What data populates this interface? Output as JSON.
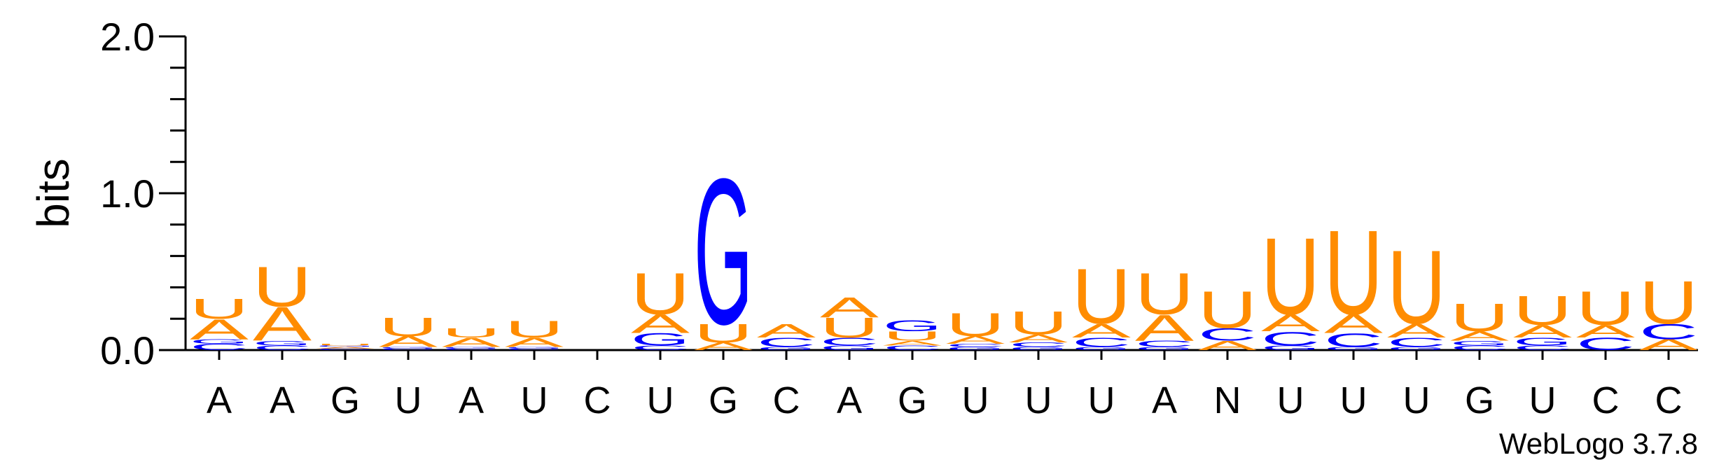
{
  "chart_data": {
    "type": "sequence-logo",
    "ylabel": "bits",
    "ylim": [
      0,
      2.0
    ],
    "yticks": [
      "0.0",
      "1.0",
      "2.0"
    ],
    "x_labels": [
      "A",
      "A",
      "G",
      "U",
      "A",
      "U",
      "C",
      "U",
      "G",
      "C",
      "A",
      "G",
      "U",
      "U",
      "U",
      "A",
      "N",
      "U",
      "U",
      "U",
      "G",
      "U",
      "C",
      "C"
    ],
    "colors": {
      "A": "#ff8c00",
      "U": "#ff8c00",
      "G": "#0000ff",
      "C": "#0000ff"
    },
    "columns": [
      [
        [
          "C",
          0.04
        ],
        [
          "G",
          0.03
        ],
        [
          "A",
          0.13
        ],
        [
          "U",
          0.13
        ]
      ],
      [
        [
          "C",
          0.03
        ],
        [
          "G",
          0.03
        ],
        [
          "A",
          0.22
        ],
        [
          "U",
          0.26
        ]
      ],
      [
        [
          "C",
          0.01
        ],
        [
          "A",
          0.01
        ],
        [
          "G",
          0.01
        ],
        [
          "U",
          0.01
        ]
      ],
      [
        [
          "C",
          0.01
        ],
        [
          "G",
          0.01
        ],
        [
          "A",
          0.07
        ],
        [
          "U",
          0.12
        ]
      ],
      [
        [
          "C",
          0.01
        ],
        [
          "G",
          0.01
        ],
        [
          "A",
          0.06
        ],
        [
          "U",
          0.06
        ]
      ],
      [
        [
          "C",
          0.01
        ],
        [
          "G",
          0.01
        ],
        [
          "A",
          0.06
        ],
        [
          "U",
          0.11
        ]
      ],
      [],
      [
        [
          "C",
          0.03
        ],
        [
          "G",
          0.08
        ],
        [
          "A",
          0.12
        ],
        [
          "U",
          0.27
        ]
      ],
      [
        [
          "A",
          0.05
        ],
        [
          "U",
          0.12
        ],
        [
          "G",
          0.95
        ]
      ],
      [
        [
          "G",
          0.02
        ],
        [
          "C",
          0.06
        ],
        [
          "A",
          0.09
        ]
      ],
      [
        [
          "G",
          0.03
        ],
        [
          "C",
          0.05
        ],
        [
          "U",
          0.13
        ],
        [
          "A",
          0.13
        ]
      ],
      [
        [
          "C",
          0.03
        ],
        [
          "A",
          0.03
        ],
        [
          "U",
          0.06
        ],
        [
          "G",
          0.07
        ]
      ],
      [
        [
          "G",
          0.02
        ],
        [
          "C",
          0.02
        ],
        [
          "A",
          0.05
        ],
        [
          "U",
          0.15
        ]
      ],
      [
        [
          "G",
          0.02
        ],
        [
          "C",
          0.03
        ],
        [
          "A",
          0.05
        ],
        [
          "U",
          0.15
        ]
      ],
      [
        [
          "G",
          0.02
        ],
        [
          "C",
          0.06
        ],
        [
          "A",
          0.09
        ],
        [
          "U",
          0.36
        ]
      ],
      [
        [
          "G",
          0.02
        ],
        [
          "C",
          0.04
        ],
        [
          "A",
          0.17
        ],
        [
          "U",
          0.27
        ]
      ],
      [
        [
          "A",
          0.06
        ],
        [
          "C",
          0.08
        ],
        [
          "U",
          0.24
        ]
      ],
      [
        [
          "G",
          0.03
        ],
        [
          "C",
          0.09
        ],
        [
          "A",
          0.11
        ],
        [
          "U",
          0.5
        ]
      ],
      [
        [
          "G",
          0.02
        ],
        [
          "C",
          0.09
        ],
        [
          "A",
          0.12
        ],
        [
          "U",
          0.55
        ]
      ],
      [
        [
          "G",
          0.02
        ],
        [
          "C",
          0.06
        ],
        [
          "A",
          0.09
        ],
        [
          "U",
          0.48
        ]
      ],
      [
        [
          "C",
          0.03
        ],
        [
          "G",
          0.03
        ],
        [
          "A",
          0.06
        ],
        [
          "U",
          0.18
        ]
      ],
      [
        [
          "C",
          0.03
        ],
        [
          "G",
          0.05
        ],
        [
          "A",
          0.08
        ],
        [
          "U",
          0.19
        ]
      ],
      [
        [
          "C",
          0.08
        ],
        [
          "A",
          0.08
        ],
        [
          "U",
          0.22
        ]
      ],
      [
        [
          "A",
          0.07
        ],
        [
          "C",
          0.1
        ],
        [
          "U",
          0.28
        ]
      ]
    ]
  },
  "watermark": "WebLogo 3.7.8"
}
